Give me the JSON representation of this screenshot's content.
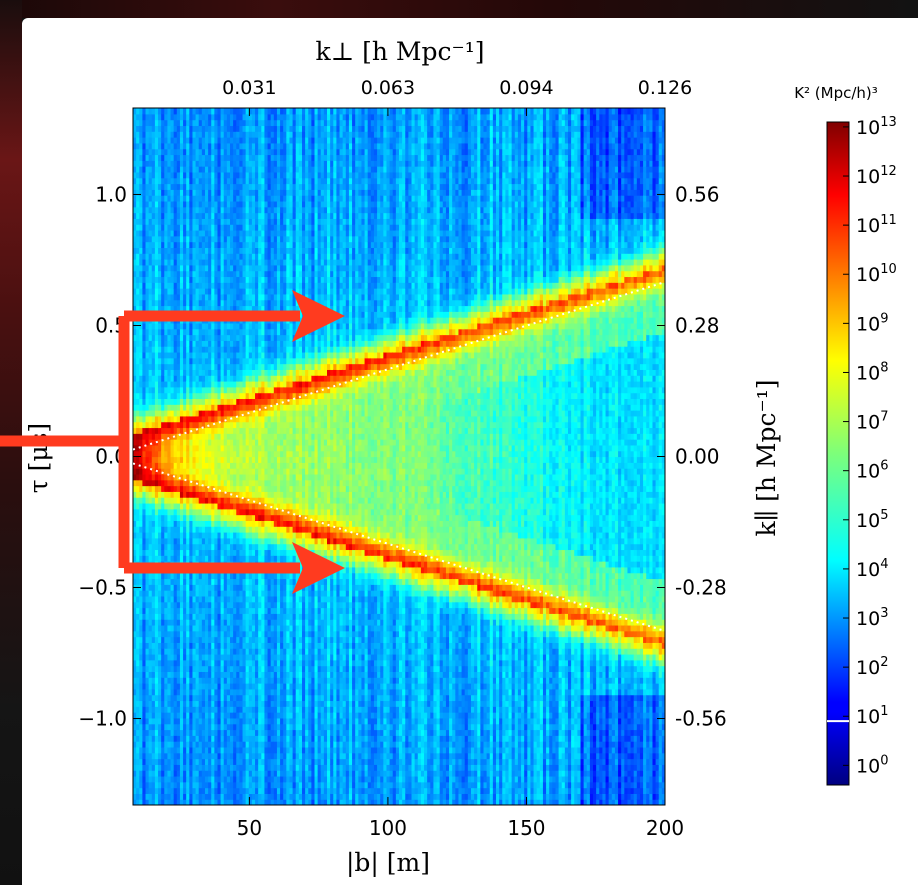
{
  "chart_data": {
    "type": "heatmap",
    "xlabel": "|b| [m]",
    "ylabel": "τ [μs]",
    "top_xlabel": "k⊥ [h Mpc⁻¹]",
    "right_ylabel": "k∥ [h Mpc⁻¹]",
    "x_ticks": [
      "50",
      "100",
      "150",
      "200"
    ],
    "x_tick_values": [
      50,
      100,
      150,
      200
    ],
    "y_ticks": [
      "1.0",
      "0.5",
      "0.0",
      "−0.5",
      "−1.0"
    ],
    "y_tick_values": [
      1.0,
      0.5,
      0.0,
      -0.5,
      -1.0
    ],
    "top_ticks": [
      "0.031",
      "0.063",
      "0.094",
      "0.126"
    ],
    "top_tick_values": [
      50,
      100,
      150,
      200
    ],
    "right_ticks": [
      "0.56",
      "0.28",
      "0.00",
      "-0.28",
      "-0.56"
    ],
    "right_tick_values": [
      1.0,
      0.5,
      0.0,
      -0.5,
      -1.0
    ],
    "xlim": [
      8,
      200
    ],
    "ylim": [
      -1.33,
      1.33
    ],
    "wedge": {
      "slope_us_per_m": 0.00333,
      "horizon_line": "white dotted"
    },
    "colorbar": {
      "title": "K² (Mpc/h)³",
      "scale": "log",
      "range": [
        0,
        13.5
      ],
      "tick_exponents": [
        13,
        12,
        11,
        10,
        9,
        8,
        7,
        6,
        5,
        4,
        3,
        2,
        1,
        0
      ],
      "base": "10",
      "marker_at": 1.3
    },
    "annotations": [
      {
        "type": "arrow",
        "color": "#ff3b1f",
        "target": "upper horizon edge"
      },
      {
        "type": "arrow",
        "color": "#ff3b1f",
        "target": "lower horizon edge"
      }
    ]
  }
}
